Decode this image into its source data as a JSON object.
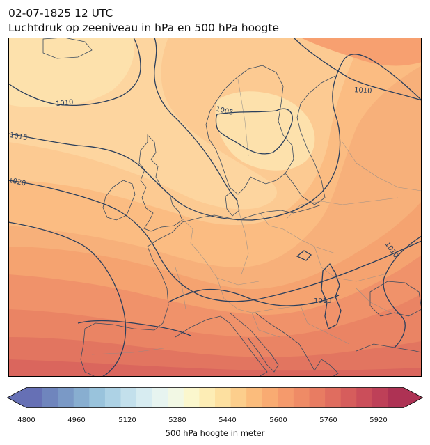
{
  "header": {
    "date_line": "02-07-1825 12 UTC",
    "subtitle": "Luchtdruk op zeeniveau in hPa en 500 hPa hoogte"
  },
  "map": {
    "isobar_labels": [
      "1010",
      "1015",
      "1020",
      "1005",
      "1010",
      "1010",
      "1010"
    ],
    "palette": {
      "frame": "#000000",
      "isobar": "#2b3f5c",
      "coast": "#3a4a5e",
      "border": "#8a8a8a"
    }
  },
  "colorbar": {
    "label": "500 hPa hoogte in meter",
    "ticks": [
      "4800",
      "4960",
      "5120",
      "5280",
      "5440",
      "5600",
      "5760",
      "5920"
    ],
    "min": 4800,
    "max": 6000,
    "step": 40,
    "colors": [
      "#6670b5",
      "#6f85bd",
      "#7a99c6",
      "#88aed0",
      "#99c3dc",
      "#add2e5",
      "#c3e0ec",
      "#d7ecf1",
      "#e7f4f0",
      "#f2f8e4",
      "#fbf7cd",
      "#fdedb5",
      "#fde0a0",
      "#fcce8c",
      "#fbbc7c",
      "#f9ab72",
      "#f59a6c",
      "#ef8b66",
      "#e87c62",
      "#e06d5f",
      "#d65d5c",
      "#cb4e5a",
      "#be4058",
      "#ae3254"
    ]
  }
}
